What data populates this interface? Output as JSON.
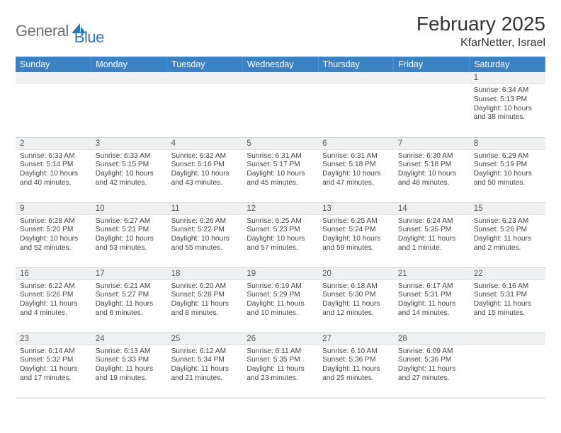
{
  "logo": {
    "part1": "General",
    "part2": "Blue"
  },
  "title": "February 2025",
  "location": "KfarNetter, Israel",
  "colors": {
    "header_bg": "#3a82c4",
    "header_text": "#ffffff",
    "daynum_bg": "#eef0f1",
    "border": "#cfcfcf",
    "logo_gray": "#6f6f6f",
    "logo_blue": "#2f75c1",
    "body_text": "#444444"
  },
  "weekdays": [
    "Sunday",
    "Monday",
    "Tuesday",
    "Wednesday",
    "Thursday",
    "Friday",
    "Saturday"
  ],
  "weeks": [
    [
      {
        "n": "",
        "s": "",
        "t": "",
        "d": ""
      },
      {
        "n": "",
        "s": "",
        "t": "",
        "d": ""
      },
      {
        "n": "",
        "s": "",
        "t": "",
        "d": ""
      },
      {
        "n": "",
        "s": "",
        "t": "",
        "d": ""
      },
      {
        "n": "",
        "s": "",
        "t": "",
        "d": ""
      },
      {
        "n": "",
        "s": "",
        "t": "",
        "d": ""
      },
      {
        "n": "1",
        "s": "Sunrise: 6:34 AM",
        "t": "Sunset: 5:13 PM",
        "d": "Daylight: 10 hours and 38 minutes."
      }
    ],
    [
      {
        "n": "2",
        "s": "Sunrise: 6:33 AM",
        "t": "Sunset: 5:14 PM",
        "d": "Daylight: 10 hours and 40 minutes."
      },
      {
        "n": "3",
        "s": "Sunrise: 6:33 AM",
        "t": "Sunset: 5:15 PM",
        "d": "Daylight: 10 hours and 42 minutes."
      },
      {
        "n": "4",
        "s": "Sunrise: 6:32 AM",
        "t": "Sunset: 5:16 PM",
        "d": "Daylight: 10 hours and 43 minutes."
      },
      {
        "n": "5",
        "s": "Sunrise: 6:31 AM",
        "t": "Sunset: 5:17 PM",
        "d": "Daylight: 10 hours and 45 minutes."
      },
      {
        "n": "6",
        "s": "Sunrise: 6:31 AM",
        "t": "Sunset: 5:18 PM",
        "d": "Daylight: 10 hours and 47 minutes."
      },
      {
        "n": "7",
        "s": "Sunrise: 6:30 AM",
        "t": "Sunset: 5:18 PM",
        "d": "Daylight: 10 hours and 48 minutes."
      },
      {
        "n": "8",
        "s": "Sunrise: 6:29 AM",
        "t": "Sunset: 5:19 PM",
        "d": "Daylight: 10 hours and 50 minutes."
      }
    ],
    [
      {
        "n": "9",
        "s": "Sunrise: 6:28 AM",
        "t": "Sunset: 5:20 PM",
        "d": "Daylight: 10 hours and 52 minutes."
      },
      {
        "n": "10",
        "s": "Sunrise: 6:27 AM",
        "t": "Sunset: 5:21 PM",
        "d": "Daylight: 10 hours and 53 minutes."
      },
      {
        "n": "11",
        "s": "Sunrise: 6:26 AM",
        "t": "Sunset: 5:22 PM",
        "d": "Daylight: 10 hours and 55 minutes."
      },
      {
        "n": "12",
        "s": "Sunrise: 6:25 AM",
        "t": "Sunset: 5:23 PM",
        "d": "Daylight: 10 hours and 57 minutes."
      },
      {
        "n": "13",
        "s": "Sunrise: 6:25 AM",
        "t": "Sunset: 5:24 PM",
        "d": "Daylight: 10 hours and 59 minutes."
      },
      {
        "n": "14",
        "s": "Sunrise: 6:24 AM",
        "t": "Sunset: 5:25 PM",
        "d": "Daylight: 11 hours and 1 minute."
      },
      {
        "n": "15",
        "s": "Sunrise: 6:23 AM",
        "t": "Sunset: 5:26 PM",
        "d": "Daylight: 11 hours and 2 minutes."
      }
    ],
    [
      {
        "n": "16",
        "s": "Sunrise: 6:22 AM",
        "t": "Sunset: 5:26 PM",
        "d": "Daylight: 11 hours and 4 minutes."
      },
      {
        "n": "17",
        "s": "Sunrise: 6:21 AM",
        "t": "Sunset: 5:27 PM",
        "d": "Daylight: 11 hours and 6 minutes."
      },
      {
        "n": "18",
        "s": "Sunrise: 6:20 AM",
        "t": "Sunset: 5:28 PM",
        "d": "Daylight: 11 hours and 8 minutes."
      },
      {
        "n": "19",
        "s": "Sunrise: 6:19 AM",
        "t": "Sunset: 5:29 PM",
        "d": "Daylight: 11 hours and 10 minutes."
      },
      {
        "n": "20",
        "s": "Sunrise: 6:18 AM",
        "t": "Sunset: 5:30 PM",
        "d": "Daylight: 11 hours and 12 minutes."
      },
      {
        "n": "21",
        "s": "Sunrise: 6:17 AM",
        "t": "Sunset: 5:31 PM",
        "d": "Daylight: 11 hours and 14 minutes."
      },
      {
        "n": "22",
        "s": "Sunrise: 6:16 AM",
        "t": "Sunset: 5:31 PM",
        "d": "Daylight: 11 hours and 15 minutes."
      }
    ],
    [
      {
        "n": "23",
        "s": "Sunrise: 6:14 AM",
        "t": "Sunset: 5:32 PM",
        "d": "Daylight: 11 hours and 17 minutes."
      },
      {
        "n": "24",
        "s": "Sunrise: 6:13 AM",
        "t": "Sunset: 5:33 PM",
        "d": "Daylight: 11 hours and 19 minutes."
      },
      {
        "n": "25",
        "s": "Sunrise: 6:12 AM",
        "t": "Sunset: 5:34 PM",
        "d": "Daylight: 11 hours and 21 minutes."
      },
      {
        "n": "26",
        "s": "Sunrise: 6:11 AM",
        "t": "Sunset: 5:35 PM",
        "d": "Daylight: 11 hours and 23 minutes."
      },
      {
        "n": "27",
        "s": "Sunrise: 6:10 AM",
        "t": "Sunset: 5:36 PM",
        "d": "Daylight: 11 hours and 25 minutes."
      },
      {
        "n": "28",
        "s": "Sunrise: 6:09 AM",
        "t": "Sunset: 5:36 PM",
        "d": "Daylight: 11 hours and 27 minutes."
      },
      {
        "n": "",
        "s": "",
        "t": "",
        "d": ""
      }
    ]
  ]
}
